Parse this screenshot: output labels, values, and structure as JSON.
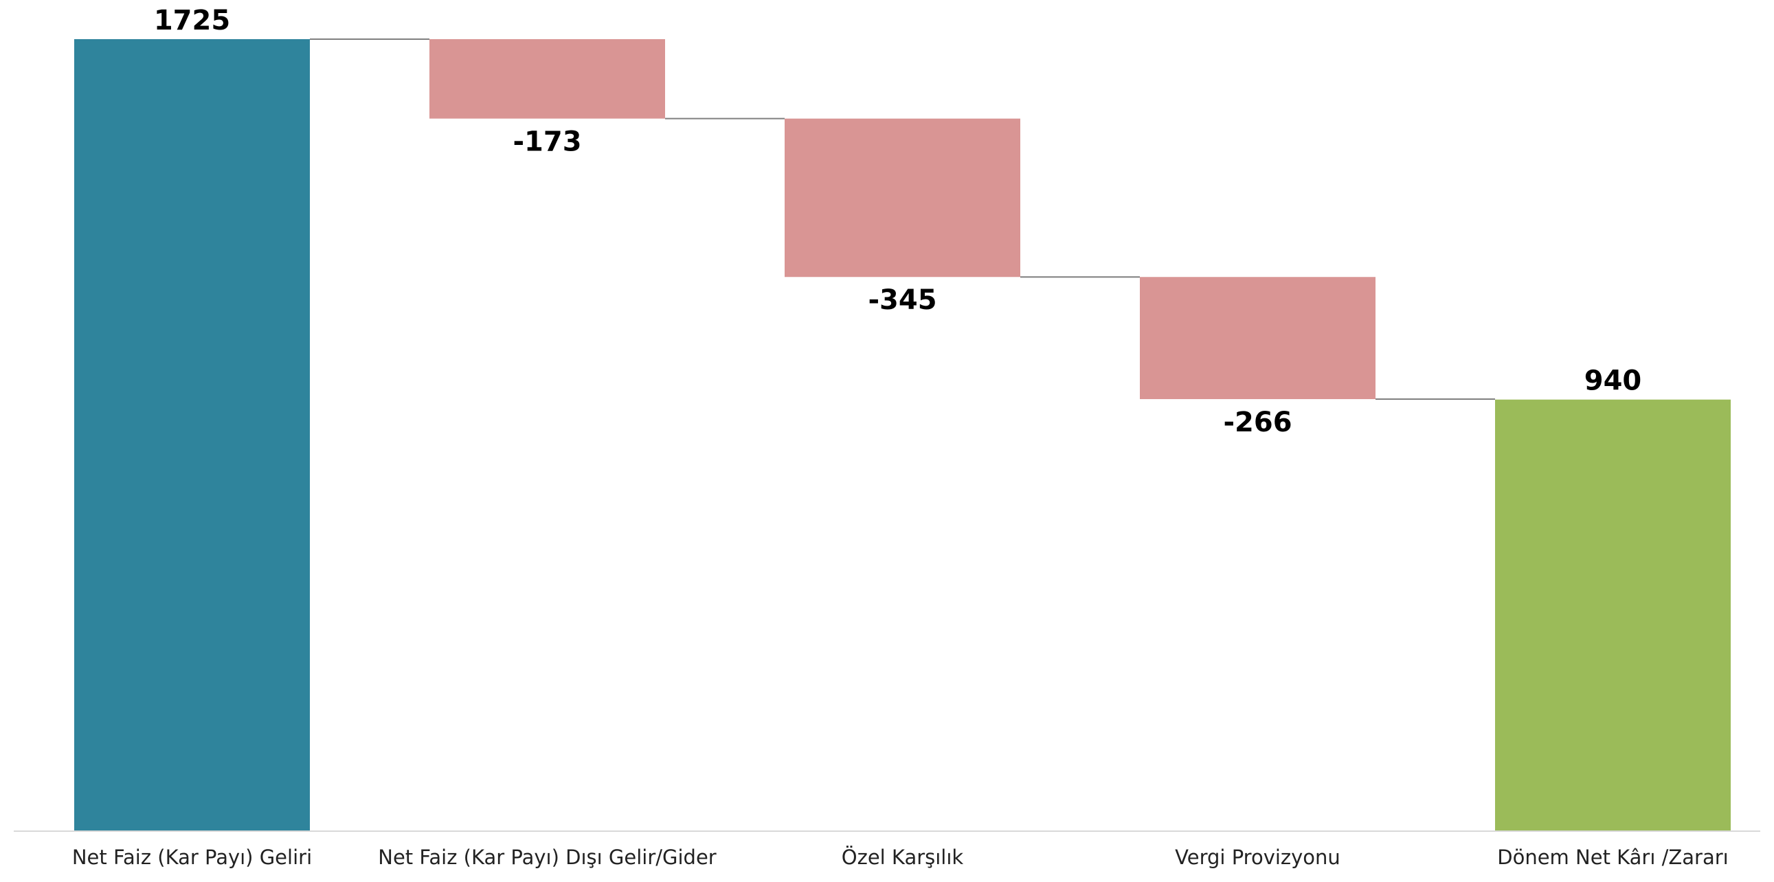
{
  "chart_data": {
    "type": "waterfall",
    "categories": [
      "Net Faiz (Kar Payı) Geliri",
      "Net Faiz (Kar Payı) Dışı Gelir/Gider",
      "Özel Karşılık",
      "Vergi Provizyonu",
      "Dönem Net Kârı /Zararı"
    ],
    "values": [
      1725,
      -173,
      -345,
      -266,
      940
    ],
    "kinds": [
      "total",
      "delta",
      "delta",
      "delta",
      "total"
    ],
    "value_labels": [
      "1725",
      "-173",
      "-345",
      "-266",
      "940"
    ],
    "ylim": [
      0,
      1725
    ],
    "grid": false,
    "legend": "none",
    "colors": {
      "start": "#2f849c",
      "decrease": "#d99594",
      "end": "#9bbb59",
      "connector": "#7f7f7f",
      "axis": "#d9d9d9"
    }
  }
}
